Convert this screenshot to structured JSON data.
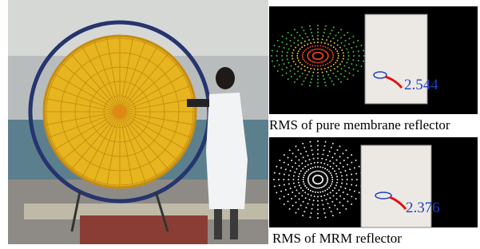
{
  "panels": [
    {
      "value": "2.544",
      "caption": "RMS of pure membrane reflector"
    },
    {
      "value": "2.376",
      "caption": "RMS of MRM reflector"
    }
  ]
}
